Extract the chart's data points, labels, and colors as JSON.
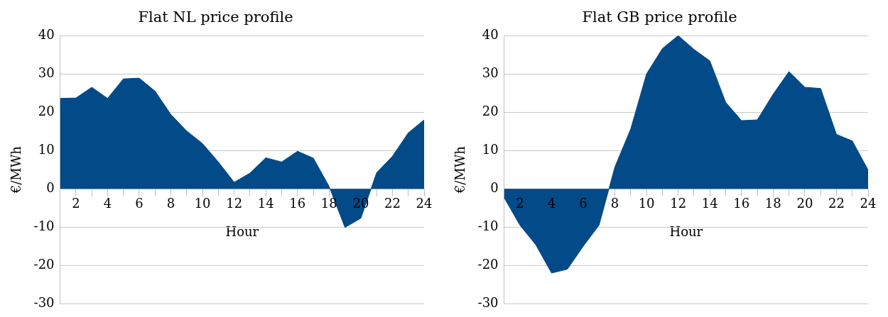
{
  "chart_data": [
    {
      "type": "area",
      "title": "Flat NL price profile",
      "xlabel": "Hour",
      "ylabel": "€/MWh",
      "categories": [
        null,
        "2",
        null,
        "4",
        null,
        "6",
        null,
        "8",
        null,
        "10",
        null,
        "12",
        null,
        "14",
        null,
        "16",
        null,
        "18",
        null,
        "20",
        null,
        "22",
        null,
        "24"
      ],
      "series": [
        {
          "color": "#034a88",
          "values": [
            23.6,
            23.7,
            26.5,
            23.6,
            28.7,
            28.9,
            25.5,
            19.4,
            15.1,
            11.8,
            7.0,
            1.7,
            4.1,
            8.1,
            7.0,
            9.8,
            8.0,
            0.6,
            -10.1,
            -7.7,
            4.2,
            8.5,
            14.6,
            18.0
          ]
        }
      ],
      "ylim": [
        -30,
        40
      ],
      "yticks": [
        -30,
        -20,
        -10,
        0,
        10,
        20,
        30,
        40
      ],
      "grid": "y"
    },
    {
      "type": "area",
      "title": "Flat GB price profile",
      "xlabel": "Hour",
      "ylabel": "€/MWh",
      "categories": [
        null,
        "2",
        null,
        "4",
        null,
        "6",
        null,
        "8",
        null,
        "10",
        null,
        "12",
        null,
        "14",
        null,
        "16",
        null,
        "18",
        null,
        "20",
        null,
        "22",
        null,
        "24"
      ],
      "series": [
        {
          "color": "#034a88",
          "values": [
            -2.3,
            -9.5,
            -14.6,
            -22.0,
            -21.0,
            -15.0,
            -9.5,
            5.7,
            15.6,
            30.0,
            36.6,
            40.0,
            36.4,
            33.4,
            22.6,
            17.8,
            18.0,
            24.7,
            30.6,
            26.5,
            26.2,
            14.2,
            12.5,
            4.9
          ]
        }
      ],
      "ylim": [
        -30,
        40
      ],
      "yticks": [
        -30,
        -20,
        -10,
        0,
        10,
        20,
        30,
        40
      ],
      "grid": "y"
    }
  ]
}
